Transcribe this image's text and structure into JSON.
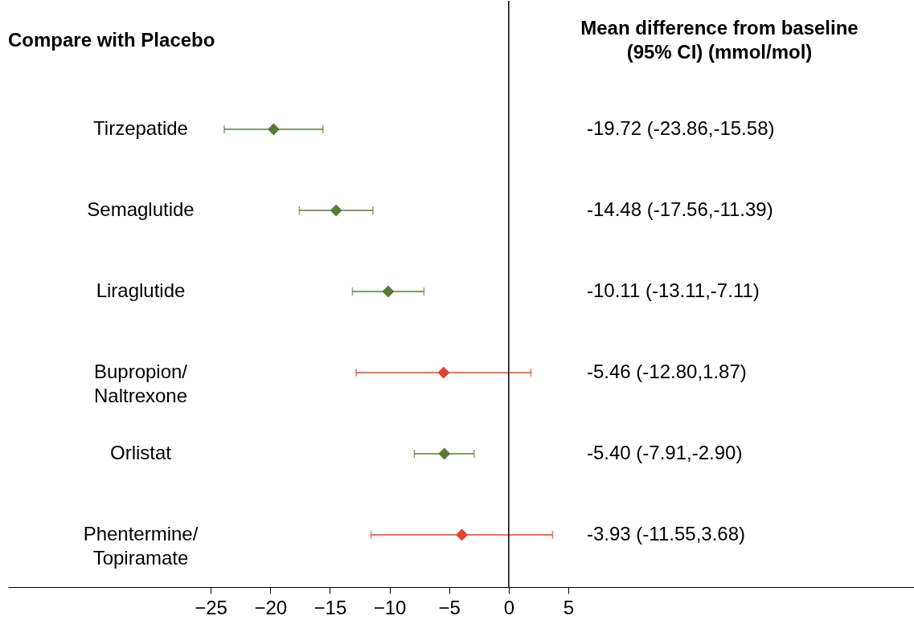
{
  "chart_data": {
    "type": "scatter",
    "orientation": "horizontal",
    "title": "Compare with Placebo",
    "annotations": [
      "Mean difference from baseline\n(95% CI) (mmol/mol)",
      "-19.72 (-23.86,-15.58)",
      "-14.48 (-17.56,-11.39)",
      "-10.11 (-13.11,-7.11)",
      "-5.46 (-12.80,1.87)",
      "-5.40 (-7.91,-2.90)",
      "-3.93 (-11.55,3.68)"
    ],
    "categories": [
      "Tirzepatide",
      "Semaglutide",
      "Liraglutide",
      "Bupropion/\nNaltrexone",
      "Orlistat",
      "Phentermine/\nTopiramate"
    ],
    "values": [
      -19.72,
      -14.48,
      -10.11,
      -5.46,
      -5.4,
      -3.93
    ],
    "errors": [
      [
        -23.86,
        -15.58
      ],
      [
        -17.56,
        -11.39
      ],
      [
        -13.11,
        -7.11
      ],
      [
        -12.8,
        1.87
      ],
      [
        -7.91,
        -2.9
      ],
      [
        -11.55,
        3.68
      ]
    ],
    "colors": [
      "#5b7a3a",
      "#5b7a3a",
      "#5b7a3a",
      "#e8402a",
      "#5b7a3a",
      "#e8402a"
    ],
    "marker": "diamond",
    "xlim": [
      -42,
      34
    ],
    "xticks": [
      -25,
      -20,
      -15,
      -10,
      -5,
      0,
      5
    ],
    "ref_lines": [
      {
        "axis": "x",
        "value": 0,
        "color": "#000000"
      }
    ],
    "grid": false
  }
}
